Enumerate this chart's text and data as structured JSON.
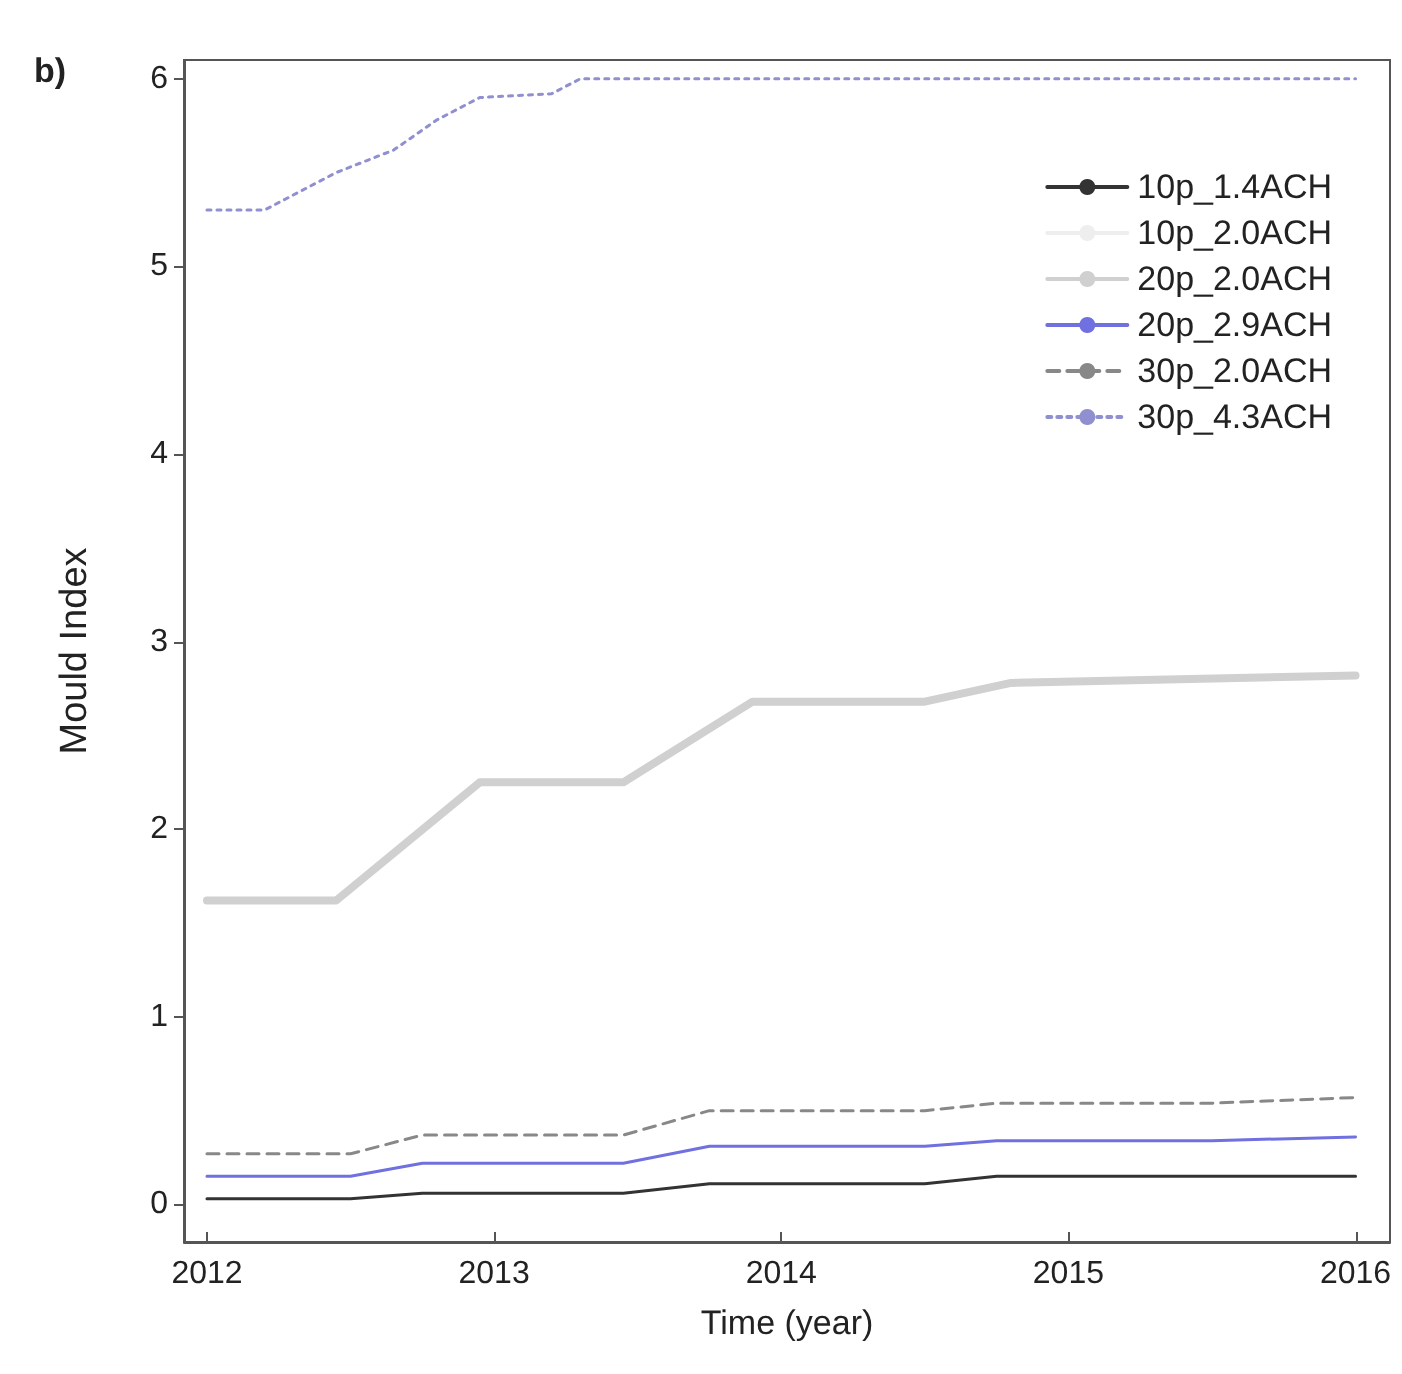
{
  "chart_data": {
    "type": "line",
    "title": "b)",
    "xlabel": "Time (year)",
    "ylabel": "Mould Index",
    "xlim": [
      2011.92,
      2016.12
    ],
    "xticks": [
      2012,
      2013,
      2014,
      2015,
      2016
    ],
    "ylim": [
      -0.2,
      6.1
    ],
    "yticks": [
      0,
      1,
      2,
      3,
      4,
      5,
      6
    ],
    "grid": false,
    "legend": "top right",
    "marker": "none",
    "series": [
      {
        "name": "10p_1.4ACH",
        "color": "#333333",
        "line_style": "solid",
        "x": [
          2012,
          2012.5,
          2012.75,
          2013.45,
          2013.75,
          2014.5,
          2014.75,
          2016
        ],
        "values": [
          0.03,
          0.03,
          0.06,
          0.06,
          0.11,
          0.11,
          0.15,
          0.15
        ]
      },
      {
        "name": "10p_2.0ACH",
        "color": "#eeeeee",
        "line_style": "solid"
      },
      {
        "name": "20p_2.0ACH",
        "color": "#d0d0d0",
        "line_style": "solid",
        "x": [
          2012,
          2012.45,
          2012.95,
          2013.45,
          2013.9,
          2014.5,
          2014.8,
          2016
        ],
        "values": [
          1.62,
          1.62,
          2.25,
          2.25,
          2.68,
          2.68,
          2.78,
          2.82
        ]
      },
      {
        "name": "20p_2.9ACH",
        "color": "#7070e0",
        "line_style": "solid",
        "x": [
          2012,
          2012.5,
          2012.75,
          2013.45,
          2013.75,
          2014.5,
          2014.75,
          2015.5,
          2016
        ],
        "values": [
          0.15,
          0.15,
          0.22,
          0.22,
          0.31,
          0.31,
          0.34,
          0.34,
          0.36
        ]
      },
      {
        "name": "30p_2.0ACH",
        "color": "#888888",
        "line_style": "dashed",
        "x": [
          2012,
          2012.5,
          2012.75,
          2013.45,
          2013.75,
          2014.5,
          2014.75,
          2015.5,
          2016
        ],
        "values": [
          0.27,
          0.27,
          0.37,
          0.37,
          0.5,
          0.5,
          0.54,
          0.54,
          0.57
        ]
      },
      {
        "name": "30p_4.3ACH",
        "color": "#9090d0",
        "line_style": "dotted",
        "x": [
          2012,
          2012.2,
          2012.45,
          2012.65,
          2012.8,
          2012.95,
          2013.2,
          2013.3,
          2016
        ],
        "values": [
          5.3,
          5.3,
          5.5,
          5.62,
          5.78,
          5.9,
          5.92,
          6.0,
          6.0
        ]
      }
    ]
  }
}
